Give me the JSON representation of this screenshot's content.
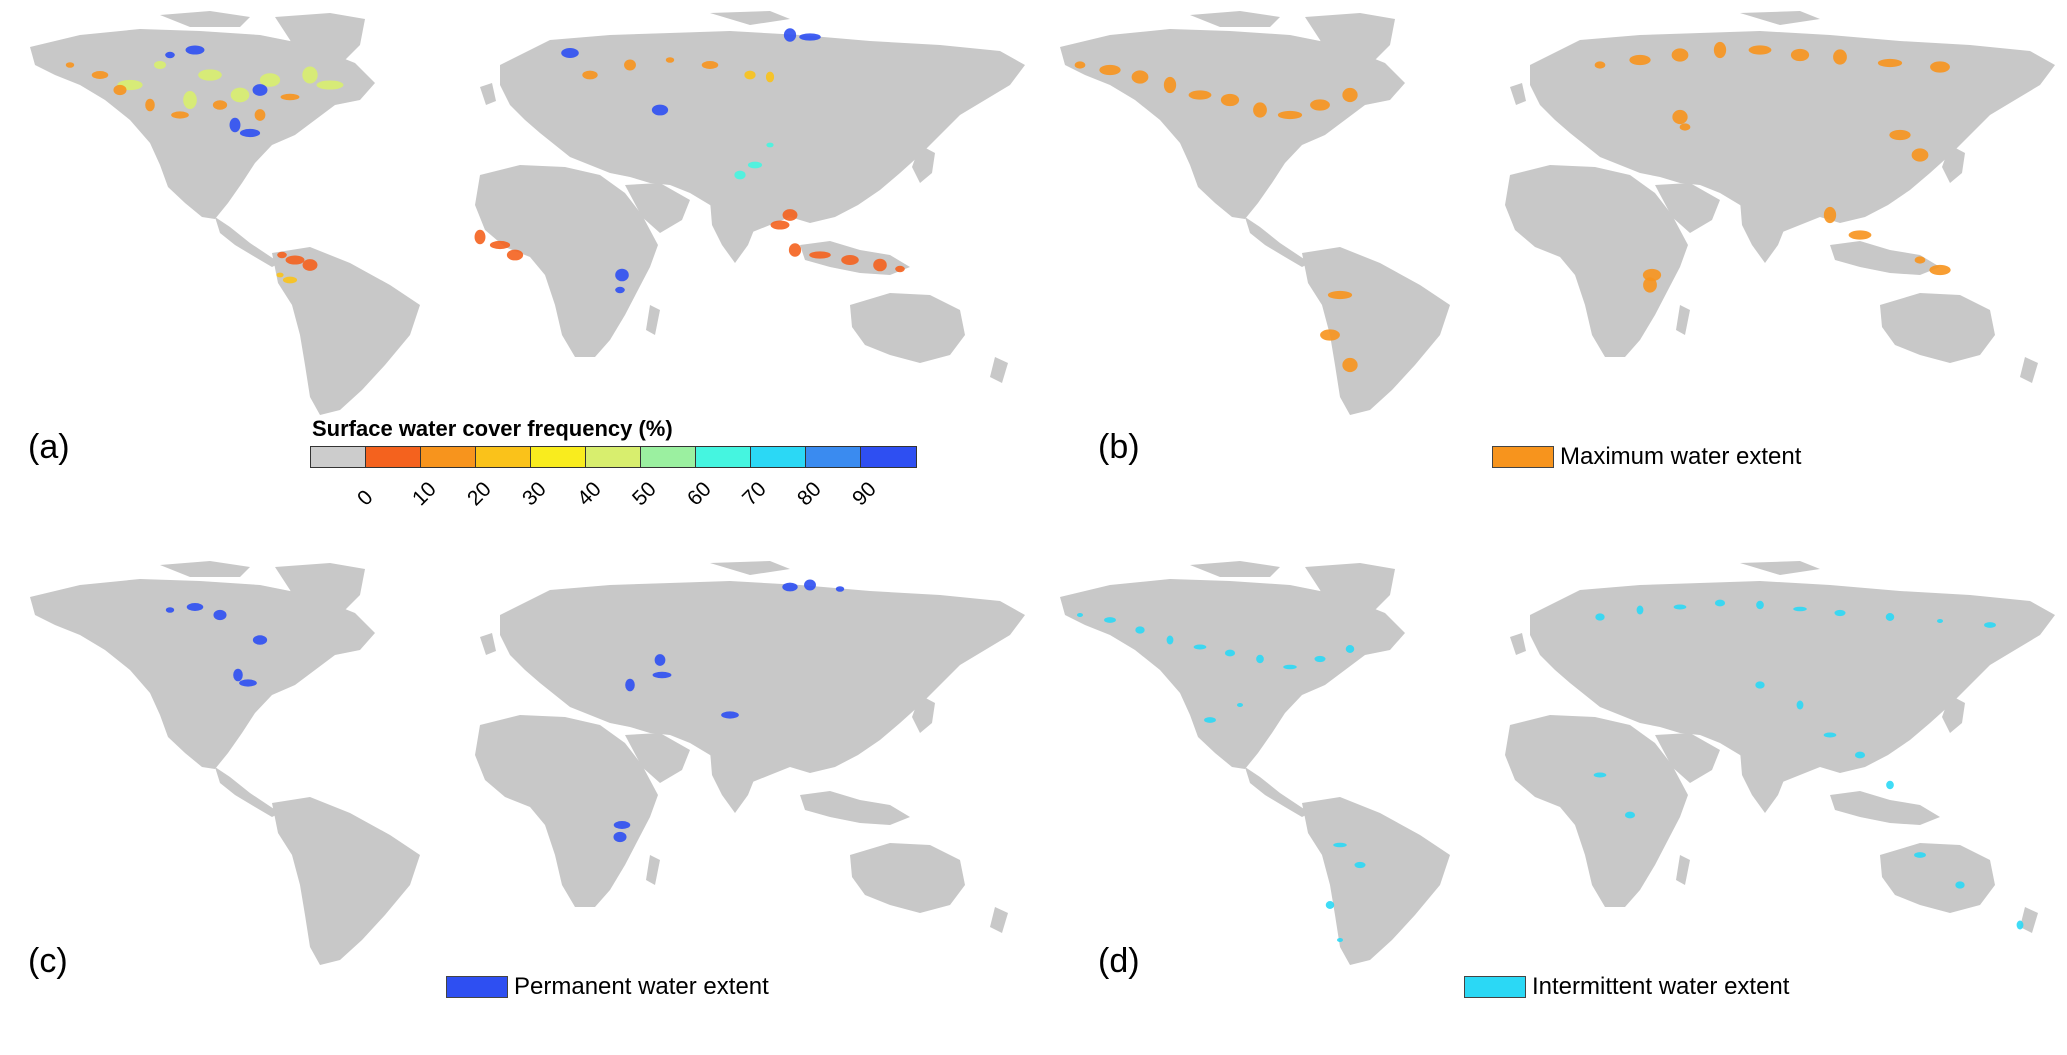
{
  "panels": {
    "a": {
      "label": "(a)"
    },
    "b": {
      "label": "(b)"
    },
    "c": {
      "label": "(c)"
    },
    "d": {
      "label": "(d)"
    }
  },
  "frequency_legend": {
    "title": "Surface water cover frequency (%)",
    "colors": [
      "#cccccc",
      "#f4621e",
      "#f7941d",
      "#fac21a",
      "#f9ec1e",
      "#d8ee6e",
      "#9bf0a0",
      "#45f5e0",
      "#2bd8f5",
      "#3a8bf0",
      "#2e4ff2"
    ],
    "ticks": [
      "0",
      "10",
      "20",
      "30",
      "40",
      "50",
      "60",
      "70",
      "80",
      "90"
    ]
  },
  "legend_b": {
    "label": "Maximum water extent",
    "color": "#f7941d"
  },
  "legend_c": {
    "label": "Permanent water extent",
    "color": "#2e4ff2"
  },
  "legend_d": {
    "label": "Intermittent water extent",
    "color": "#2bd8f5"
  },
  "map_colors": {
    "land": "#c8c8c8"
  }
}
